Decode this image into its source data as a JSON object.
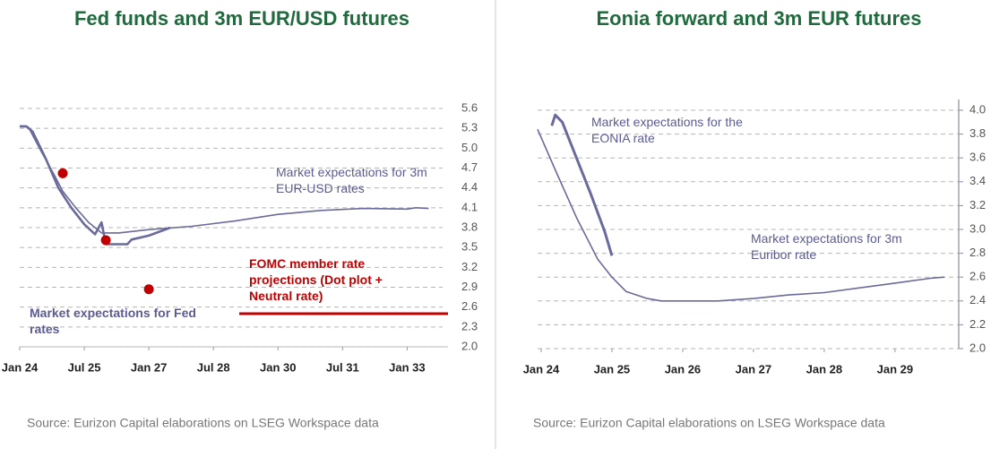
{
  "chart_data": [
    {
      "type": "line",
      "title": "Fed funds and 3m EUR/USD futures",
      "source": "Source: Eurizon Capital elaborations on LSEG Workspace data",
      "xlim": [
        2024,
        2033.95
      ],
      "ylim": [
        2.0,
        5.6
      ],
      "xticks": [
        {
          "value": 2024,
          "label": "Jan 24"
        },
        {
          "value": 2025.5,
          "label": "Jul 25"
        },
        {
          "value": 2027,
          "label": "Jan 27"
        },
        {
          "value": 2028.5,
          "label": "Jul 28"
        },
        {
          "value": 2030,
          "label": "Jan 30"
        },
        {
          "value": 2031.5,
          "label": "Jul 31"
        },
        {
          "value": 2033,
          "label": "Jan 33"
        }
      ],
      "yticks": [
        {
          "value": 2,
          "label": "2.0"
        },
        2.3,
        2.6,
        2.9,
        3.2,
        3.5,
        3.8,
        4.1,
        4.4,
        4.7,
        {
          "value": 5,
          "label": "5.0"
        },
        5.3,
        5.6
      ],
      "grid": true,
      "y_axis_side": "right",
      "series": [
        {
          "name": "Market expectations for 3m EUR-USD rates",
          "color": "#6a6a9c",
          "width": 1.6,
          "x": [
            2024,
            2024.2,
            2024.5,
            2024.8,
            2025.0,
            2025.3,
            2025.6,
            2025.9,
            2026.3,
            2027,
            2028,
            2029,
            2030,
            2031,
            2032,
            2033,
            2033.2,
            2033.5
          ],
          "values": [
            5.33,
            5.32,
            4.95,
            4.6,
            4.35,
            4.1,
            3.88,
            3.72,
            3.72,
            3.77,
            3.82,
            3.9,
            4.0,
            4.06,
            4.09,
            4.08,
            4.1,
            4.09
          ]
        },
        {
          "name": "Market expectations for Fed rates",
          "color": "#6a6a9c",
          "width": 2.6,
          "x": [
            2024,
            2024.15,
            2024.3,
            2024.6,
            2024.9,
            2025.2,
            2025.5,
            2025.75,
            2025.9,
            2026.0,
            2026.5,
            2026.6,
            2027,
            2027.5
          ],
          "values": [
            5.33,
            5.33,
            5.25,
            4.85,
            4.4,
            4.1,
            3.85,
            3.7,
            3.88,
            3.55,
            3.55,
            3.62,
            3.68,
            3.8
          ]
        },
        {
          "name": "FOMC member rate projections (Dot plot + Neutral rate)",
          "color": "#c00000",
          "marker": "dot",
          "x": [
            2025,
            2026,
            2027
          ],
          "values": [
            4.62,
            3.61,
            2.87
          ]
        }
      ],
      "neutral_rate": {
        "color": "#c00000",
        "x": [
          2029.1,
          2033.95
        ],
        "values": [
          2.5,
          2.5
        ]
      }
    },
    {
      "type": "line",
      "title": "Eonia forward and 3m EUR futures",
      "source": "Source: Eurizon Capital elaborations on LSEG Workspace data",
      "xlim": [
        2023.95,
        2029.9
      ],
      "ylim": [
        2.0,
        4.0
      ],
      "xticks": [
        {
          "value": 2024,
          "label": "Jan 24"
        },
        {
          "value": 2025,
          "label": "Jan 25"
        },
        {
          "value": 2026,
          "label": "Jan 26"
        },
        {
          "value": 2027,
          "label": "Jan 27"
        },
        {
          "value": 2028,
          "label": "Jan 28"
        },
        {
          "value": 2029,
          "label": "Jan 29"
        }
      ],
      "yticks": [
        {
          "value": 2,
          "label": "2.0"
        },
        2.2,
        2.4,
        2.6,
        2.8,
        {
          "value": 3,
          "label": "3.0"
        },
        3.2,
        3.4,
        3.6,
        3.8,
        {
          "value": 4,
          "label": "4.0"
        }
      ],
      "grid": true,
      "y_axis_side": "right",
      "series": [
        {
          "name": "Market expectations for the EONIA rate",
          "color": "#6a6a9c",
          "width": 3,
          "x": [
            2024.15,
            2024.2,
            2024.3,
            2024.5,
            2024.7,
            2024.9,
            2025.0
          ],
          "values": [
            3.87,
            3.96,
            3.9,
            3.6,
            3.3,
            2.98,
            2.78
          ]
        },
        {
          "name": "Market expectations for 3m Euribor rate",
          "color": "#6a6a9c",
          "width": 1.6,
          "x": [
            2023.95,
            2024.2,
            2024.5,
            2024.8,
            2025.0,
            2025.2,
            2025.5,
            2025.7,
            2026.5,
            2027,
            2027.5,
            2028,
            2028.5,
            2029,
            2029.5,
            2029.7
          ],
          "values": [
            3.84,
            3.5,
            3.1,
            2.75,
            2.6,
            2.48,
            2.42,
            2.4,
            2.4,
            2.42,
            2.45,
            2.47,
            2.51,
            2.55,
            2.59,
            2.6
          ]
        }
      ]
    }
  ]
}
